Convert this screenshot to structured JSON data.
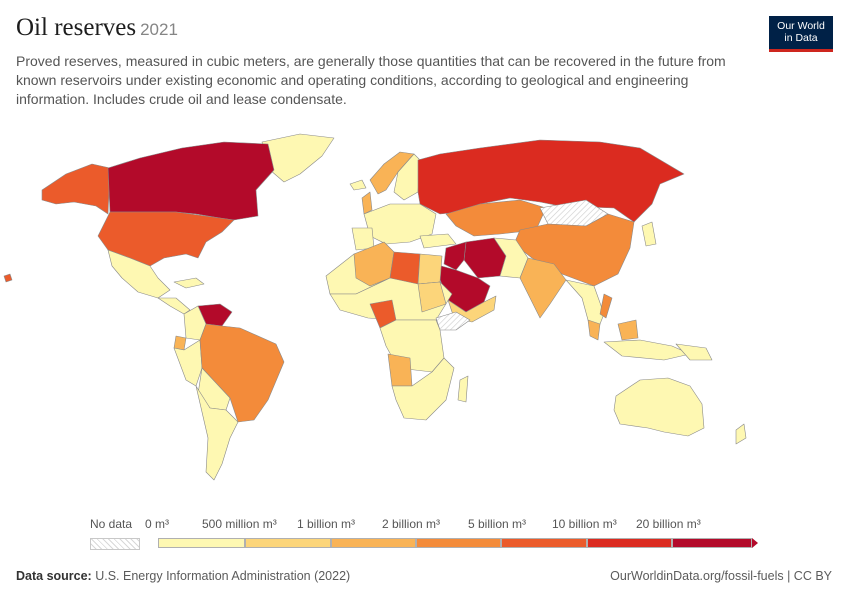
{
  "header": {
    "title": "Oil reserves",
    "year": "2021",
    "subtitle": "Proved reserves, measured in cubic meters, are generally those quantities that can be recovered in the future from known reservoirs under existing economic and operating conditions, according to geological and engineering information. Includes crude oil and lease condensate."
  },
  "logo": {
    "line1": "Our World",
    "line2": "in Data"
  },
  "legend": {
    "no_data_label": "No data",
    "bins": [
      {
        "label": "0 m³",
        "color": "#fef8b2"
      },
      {
        "label": "500 million m³",
        "color": "#fcd57a"
      },
      {
        "label": "1 billion m³",
        "color": "#f9b356"
      },
      {
        "label": "2 billion m³",
        "color": "#f38b3a"
      },
      {
        "label": "5 billion m³",
        "color": "#eb5b2b"
      },
      {
        "label": "10 billion m³",
        "color": "#db2b20"
      },
      {
        "label": "20 billion m³",
        "color": "#b30a2a"
      }
    ]
  },
  "footer": {
    "source_label": "Data source:",
    "source_text": "U.S. Energy Information Administration (2022)",
    "link": "OurWorldinData.org/fossil-fuels | CC BY"
  }
}
